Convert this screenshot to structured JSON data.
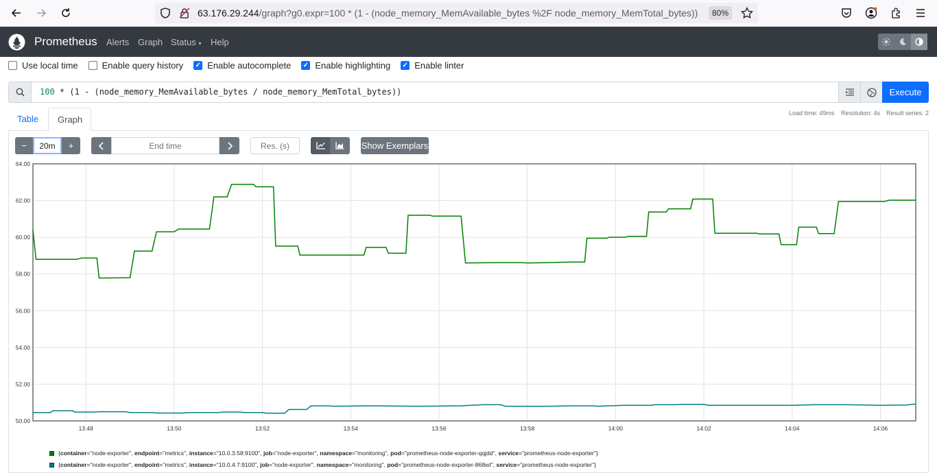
{
  "browser": {
    "url_main": "63.176.29.244",
    "url_path": "/graph?g0.expr=100 * (1 - (node_memory_MemAvailable_bytes %2F node_memory_MemTotal_bytes))",
    "zoom": "80%"
  },
  "nav": {
    "brand": "Prometheus",
    "links": [
      "Alerts",
      "Graph",
      "Status",
      "Help"
    ]
  },
  "options": [
    {
      "label": "Use local time",
      "checked": false
    },
    {
      "label": "Enable query history",
      "checked": false
    },
    {
      "label": "Enable autocomplete",
      "checked": true
    },
    {
      "label": "Enable highlighting",
      "checked": true
    },
    {
      "label": "Enable linter",
      "checked": true
    }
  ],
  "query": {
    "num": "100",
    "rest": " * (1 - (node_memory_MemAvailable_bytes / node_memory_MemTotal_bytes))",
    "execute_label": "Execute"
  },
  "stats": {
    "load_time": "Load time: 49ms",
    "resolution": "Resolution: 4s",
    "result_series": "Result series: 2"
  },
  "tabs": [
    "Table",
    "Graph"
  ],
  "controls": {
    "range": "20m",
    "end_placeholder": "End time",
    "res_placeholder": "Res. (s)",
    "exemplars_label": "Show Exemplars",
    "minus": "−",
    "plus": "+"
  },
  "chart_data": {
    "type": "line",
    "ylim": [
      50,
      64
    ],
    "yticks": [
      "50.00",
      "52.00",
      "54.00",
      "56.00",
      "58.00",
      "60.00",
      "62.00",
      "64.00"
    ],
    "xticks": [
      "13:48",
      "13:50",
      "13:52",
      "13:54",
      "13:56",
      "13:58",
      "14:00",
      "14:02",
      "14:04",
      "14:06"
    ],
    "x_minutes_range": [
      46.8,
      66.8
    ],
    "series": [
      {
        "color": "#008000",
        "points": [
          [
            46.8,
            60.4
          ],
          [
            46.87,
            58.8
          ],
          [
            47.8,
            58.8
          ],
          [
            47.9,
            58.87
          ],
          [
            48.25,
            58.87
          ],
          [
            48.3,
            57.78
          ],
          [
            49,
            57.8
          ],
          [
            49.1,
            59.25
          ],
          [
            49.5,
            59.25
          ],
          [
            49.6,
            60.3
          ],
          [
            50,
            60.3
          ],
          [
            50.1,
            60.45
          ],
          [
            50.8,
            60.45
          ],
          [
            50.9,
            62.2
          ],
          [
            51.2,
            62.2
          ],
          [
            51.3,
            62.88
          ],
          [
            51.8,
            62.88
          ],
          [
            51.85,
            62.75
          ],
          [
            52.25,
            62.75
          ],
          [
            52.3,
            59.52
          ],
          [
            52.8,
            59.52
          ],
          [
            52.85,
            59.03
          ],
          [
            54.3,
            59.03
          ],
          [
            54.35,
            59.45
          ],
          [
            54.8,
            59.45
          ],
          [
            54.85,
            59.13
          ],
          [
            55.25,
            59.13
          ],
          [
            55.3,
            61.2
          ],
          [
            55.8,
            61.2
          ],
          [
            55.85,
            61.15
          ],
          [
            56.5,
            61.15
          ],
          [
            56.6,
            58.6
          ],
          [
            57.3,
            58.62
          ],
          [
            57.85,
            58.62
          ],
          [
            58,
            58.6
          ],
          [
            58.5,
            58.62
          ],
          [
            58.95,
            58.65
          ],
          [
            59.3,
            58.65
          ],
          [
            59.35,
            59.95
          ],
          [
            59.8,
            59.95
          ],
          [
            59.85,
            60
          ],
          [
            60.2,
            60
          ],
          [
            60.3,
            60.05
          ],
          [
            60.7,
            60.05
          ],
          [
            60.75,
            61.38
          ],
          [
            61.15,
            61.38
          ],
          [
            61.2,
            61.55
          ],
          [
            61.7,
            61.55
          ],
          [
            61.75,
            62.08
          ],
          [
            62.2,
            62.08
          ],
          [
            62.25,
            60.22
          ],
          [
            63.2,
            60.22
          ],
          [
            63.25,
            60.18
          ],
          [
            63.7,
            60.18
          ],
          [
            63.75,
            59.6
          ],
          [
            64.1,
            59.6
          ],
          [
            64.15,
            60.55
          ],
          [
            64.55,
            60.55
          ],
          [
            64.6,
            60.2
          ],
          [
            64.95,
            60.2
          ],
          [
            65.05,
            61.95
          ],
          [
            66.1,
            61.95
          ],
          [
            66.2,
            62.02
          ],
          [
            66.8,
            62.02
          ]
        ]
      },
      {
        "color": "#008080",
        "points": [
          [
            46.8,
            50.45
          ],
          [
            47.2,
            50.45
          ],
          [
            47.25,
            50.55
          ],
          [
            47.7,
            50.55
          ],
          [
            47.75,
            50.48
          ],
          [
            48.2,
            50.48
          ],
          [
            48.3,
            50.5
          ],
          [
            48.9,
            50.5
          ],
          [
            49,
            50.45
          ],
          [
            49.5,
            50.45
          ],
          [
            49.6,
            50.43
          ],
          [
            50.2,
            50.43
          ],
          [
            50.3,
            50.45
          ],
          [
            51,
            50.45
          ],
          [
            51.1,
            50.48
          ],
          [
            51.5,
            50.48
          ],
          [
            51.6,
            50.45
          ],
          [
            52,
            50.45
          ],
          [
            52.1,
            50.42
          ],
          [
            52.5,
            50.42
          ],
          [
            52.6,
            50.62
          ],
          [
            53,
            50.62
          ],
          [
            53.1,
            50.82
          ],
          [
            53.5,
            50.82
          ],
          [
            53.6,
            50.8
          ],
          [
            54.5,
            50.82
          ],
          [
            55.5,
            50.8
          ],
          [
            56.5,
            50.82
          ],
          [
            57,
            50.88
          ],
          [
            57.4,
            50.88
          ],
          [
            57.5,
            50.8
          ],
          [
            58.5,
            50.8
          ],
          [
            59,
            50.82
          ],
          [
            59.5,
            50.82
          ],
          [
            59.6,
            50.8
          ],
          [
            60.2,
            50.85
          ],
          [
            60.8,
            50.85
          ],
          [
            60.9,
            50.88
          ],
          [
            61.4,
            50.88
          ],
          [
            61.5,
            50.9
          ],
          [
            62,
            50.9
          ],
          [
            62.1,
            50.85
          ],
          [
            63.5,
            50.85
          ],
          [
            64,
            50.85
          ],
          [
            64.5,
            50.88
          ],
          [
            65.2,
            50.88
          ],
          [
            66,
            50.85
          ],
          [
            66.6,
            50.87
          ],
          [
            66.8,
            50.92
          ]
        ]
      }
    ]
  },
  "legend": [
    {
      "color": "#008000",
      "labels": [
        {
          "k": "container",
          "v": "\"node-exporter\""
        },
        {
          "k": "endpoint",
          "v": "\"metrics\""
        },
        {
          "k": "instance",
          "v": "\"10.0.3.58:9100\""
        },
        {
          "k": "job",
          "v": "\"node-exporter\""
        },
        {
          "k": "namespace",
          "v": "\"monitoring\""
        },
        {
          "k": "pod",
          "v": "\"prometheus-node-exporter-qqjdd\""
        },
        {
          "k": "service",
          "v": "\"prometheus-node-exporter\""
        }
      ]
    },
    {
      "color": "#008080",
      "labels": [
        {
          "k": "container",
          "v": "\"node-exporter\""
        },
        {
          "k": "endpoint",
          "v": "\"metrics\""
        },
        {
          "k": "instance",
          "v": "\"10.0.4.7:9100\""
        },
        {
          "k": "job",
          "v": "\"node-exporter\""
        },
        {
          "k": "namespace",
          "v": "\"monitoring\""
        },
        {
          "k": "pod",
          "v": "\"prometheus-node-exporter-868wt\""
        },
        {
          "k": "service",
          "v": "\"prometheus-node-exporter\""
        }
      ]
    }
  ]
}
